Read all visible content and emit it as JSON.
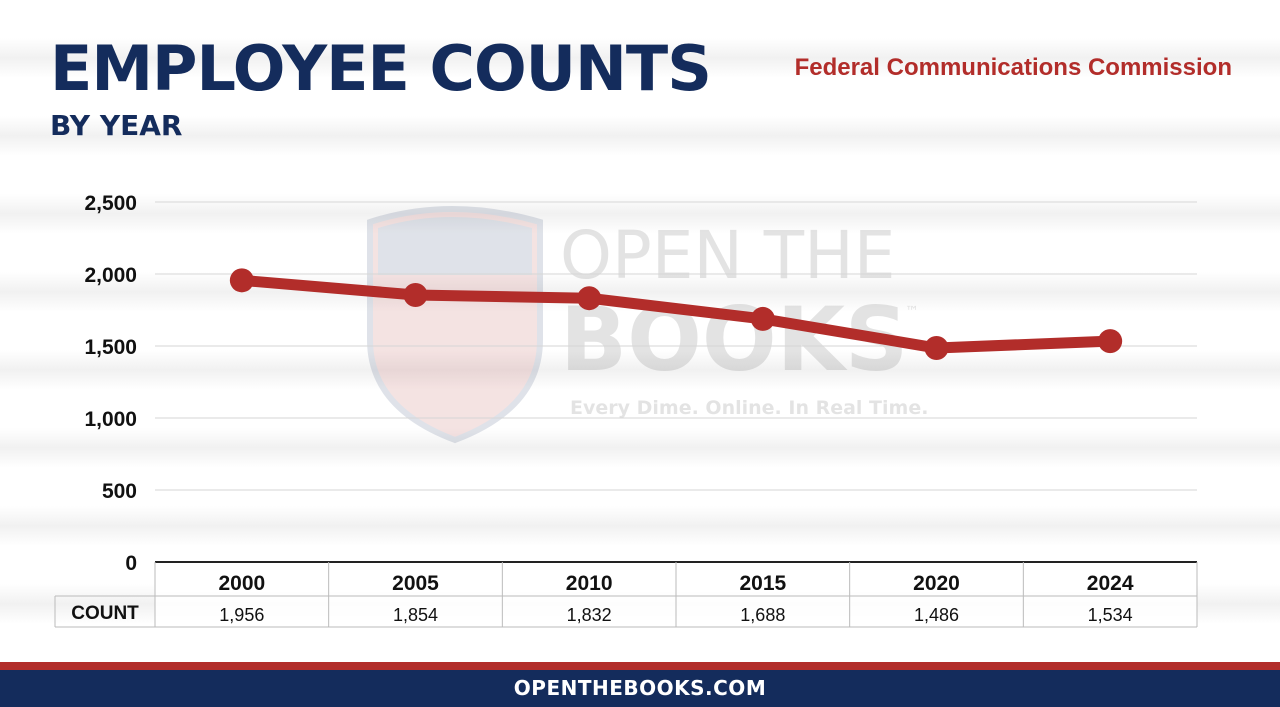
{
  "header": {
    "title": "EMPLOYEE COUNTS",
    "subtitle": "BY YEAR",
    "agency": "Federal Communications Commission"
  },
  "watermark": {
    "line1": "OPEN THE",
    "line2": "BOOKS",
    "tm": "™",
    "tagline": "Every Dime. Online. In Real Time."
  },
  "table": {
    "row_label": "COUNT"
  },
  "footer": {
    "text": "OPENTHEBOOKS.COM"
  },
  "colors": {
    "navy": "#142c5c",
    "red": "#b22d2a"
  },
  "chart_data": {
    "type": "line",
    "title": "EMPLOYEE COUNTS",
    "subtitle": "BY YEAR",
    "categories": [
      "2000",
      "2005",
      "2010",
      "2015",
      "2020",
      "2024"
    ],
    "values": [
      1956,
      1854,
      1832,
      1688,
      1486,
      1534
    ],
    "value_labels": [
      "1,956",
      "1,854",
      "1,832",
      "1,688",
      "1,486",
      "1,534"
    ],
    "y_ticks": [
      0,
      500,
      1000,
      1500,
      2000,
      2500
    ],
    "y_tick_labels": [
      "0",
      "500",
      "1,000",
      "1,500",
      "2,000",
      "2,500"
    ],
    "ylim": [
      0,
      2500
    ],
    "grid": true,
    "line_color": "#b22d2a"
  }
}
